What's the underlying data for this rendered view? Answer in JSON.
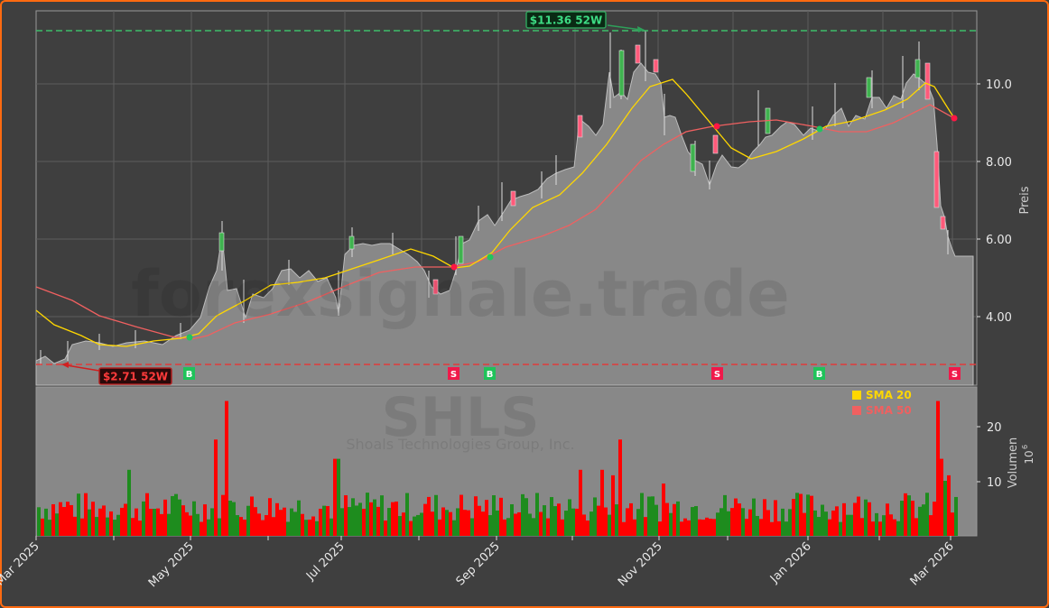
{
  "chart_data": [
    {
      "type": "candlestick",
      "title": "",
      "ticker": "SHLS",
      "company": "Shoals Technologies Group, Inc.",
      "watermark": "forexsignale.trade",
      "ylabel": "Preis",
      "xlabel": "",
      "ylim": [
        2.4,
        11.7
      ],
      "yticks": [
        "4.00",
        "6.00",
        "8.00",
        "10.0"
      ],
      "x_ticks": [
        "Mar 2025",
        "May 2025",
        "Jul 2025",
        "Sep 2025",
        "Nov 2025",
        "Jan 2026",
        "Mar 2026"
      ],
      "grid": true,
      "high_52w": {
        "value": 11.36,
        "label": "$11.36 52W"
      },
      "low_52w": {
        "value": 2.71,
        "label": "$2.71 52W"
      },
      "legend": [
        {
          "label": "SMA 20",
          "color": "#ffd700"
        },
        {
          "label": "SMA 50",
          "color": "#f06060"
        }
      ],
      "signals": [
        {
          "type": "B",
          "date": "May 2025",
          "price": 3.4
        },
        {
          "type": "S",
          "date": "Aug 2025",
          "price": 5.25
        },
        {
          "type": "B",
          "date": "Aug 2025",
          "price": 5.5
        },
        {
          "type": "S",
          "date": "Nov 2025",
          "price": 8.85
        },
        {
          "type": "B",
          "date": "Jan 2026",
          "price": 8.85
        },
        {
          "type": "S",
          "date": "Feb 2026",
          "price": 9.05
        }
      ],
      "close_approx": {
        "dates": [
          "2025-03",
          "2025-04-01",
          "2025-04-15",
          "2025-05-01",
          "2025-05-15",
          "2025-06-01",
          "2025-06-15",
          "2025-07-01",
          "2025-07-15",
          "2025-08-01",
          "2025-08-15",
          "2025-09-01",
          "2025-09-15",
          "2025-10-01",
          "2025-10-15",
          "2025-11-01",
          "2025-11-15",
          "2025-12-01",
          "2025-12-15",
          "2026-01-01",
          "2026-01-15",
          "2026-02-01",
          "2026-02-15",
          "2026-03-01"
        ],
        "values": [
          2.9,
          3.3,
          3.2,
          3.5,
          6.0,
          4.7,
          5.1,
          5.0,
          5.8,
          5.6,
          4.6,
          6.5,
          7.0,
          7.4,
          10.5,
          9.7,
          8.0,
          8.2,
          9.0,
          8.7,
          9.3,
          10.0,
          6.8,
          5.6
        ]
      }
    },
    {
      "type": "bar",
      "ylabel": "Volumen",
      "yunit": "10^6",
      "yticks": [
        "10",
        "20"
      ],
      "ylim": [
        0,
        26
      ],
      "colors": {
        "up": "#1e8c1e",
        "down": "#ff0000"
      },
      "peaks": [
        {
          "date": "May 2025",
          "value": 24.5,
          "dir": "down"
        },
        {
          "date": "Oct 2025",
          "value": 17.5,
          "dir": "up"
        },
        {
          "date": "Feb 2026",
          "value": 24.5,
          "dir": "down"
        }
      ],
      "typical_range": [
        3,
        9
      ]
    }
  ],
  "ui": {
    "price_axis_label": "Preis",
    "volume_axis_label": "Volumen",
    "volume_unit": "10",
    "volume_unit_exp": "6",
    "high_label": "$11.36 52W",
    "low_label": "$2.71 52W",
    "legend_sma20": "SMA 20",
    "legend_sma50": "SMA 50",
    "ticker": "SHLS",
    "company": "Shoals Technologies Group, Inc.",
    "watermark": "forexsignale.trade",
    "yticks": {
      "t4": "4.00",
      "t6": "6.00",
      "t8": "8.00",
      "t10": "10.0"
    },
    "vticks": {
      "v10": "10",
      "v20": "20"
    },
    "xticks": {
      "x0": "Mar 2025",
      "x1": "May 2025",
      "x2": "Jul 2025",
      "x3": "Sep 2025",
      "x4": "Nov 2025",
      "x5": "Jan 2026",
      "x6": "Mar 2026"
    },
    "signal_b": "B",
    "signal_s": "S"
  }
}
